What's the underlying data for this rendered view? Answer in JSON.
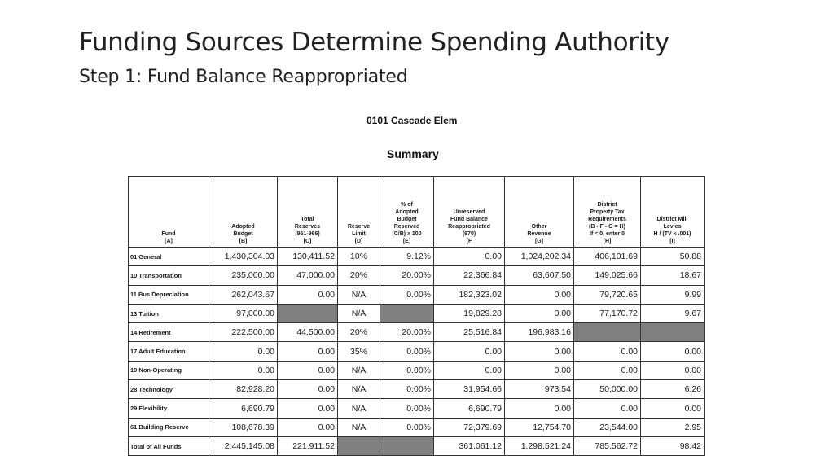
{
  "slide": {
    "title": "Funding Sources Determine Spending Authority",
    "subtitle": "Step 1: Fund Balance Reappropriated"
  },
  "report": {
    "school": "0101 Cascade Elem",
    "section": "Summary"
  },
  "table": {
    "headers": [
      "Fund\n[A]",
      "Adopted\nBudget\n[B]",
      "Total\nReserves\n(961-966)\n[C]",
      "Reserve\nLimit\n[D]",
      "% of\nAdopted\nBudget\nReserved\n(C/B) x 100\n[E]",
      "Unreserved\nFund Balance\nReappropriated\n(970)\n[F",
      "Other\nRevenue\n[G]",
      "District\nProperty Tax\nRequirements\n(B - F - G = H)\nIf < 0, enter 0\n[H]",
      "District Mill\nLevies\nH / (TV x .001)\n[I]"
    ],
    "rows": [
      {
        "fund": "01 General",
        "adopted": "1,430,304.03",
        "reserves": "130,411.52",
        "limit": "10%",
        "pct": "9.12%",
        "unreserved": "0.00",
        "other": "1,024,202.34",
        "tax": "406,101.69",
        "levies": "50.88"
      },
      {
        "fund": "10 Transportation",
        "adopted": "235,000.00",
        "reserves": "47,000.00",
        "limit": "20%",
        "pct": "20.00%",
        "unreserved": "22,366.84",
        "other": "63,607.50",
        "tax": "149,025.66",
        "levies": "18.67"
      },
      {
        "fund": "11 Bus Depreciation",
        "adopted": "262,043.67",
        "reserves": "0.00",
        "limit": "N/A",
        "pct": "0.00%",
        "unreserved": "182,323.02",
        "other": "0.00",
        "tax": "79,720.65",
        "levies": "9.99"
      },
      {
        "fund": "13 Tuition",
        "adopted": "97,000.00",
        "reserves": "",
        "limit": "N/A",
        "pct": "",
        "unreserved": "19,829.28",
        "other": "0.00",
        "tax": "77,170.72",
        "levies": "9.67"
      },
      {
        "fund": "14 Retirement",
        "adopted": "222,500.00",
        "reserves": "44,500.00",
        "limit": "20%",
        "pct": "20.00%",
        "unreserved": "25,516.84",
        "other": "196,983.16",
        "tax": "",
        "levies": ""
      },
      {
        "fund": "17 Adult Education",
        "adopted": "0.00",
        "reserves": "0.00",
        "limit": "35%",
        "pct": "0.00%",
        "unreserved": "0.00",
        "other": "0.00",
        "tax": "0.00",
        "levies": "0.00"
      },
      {
        "fund": "19 Non-Operating",
        "adopted": "0.00",
        "reserves": "0.00",
        "limit": "N/A",
        "pct": "0.00%",
        "unreserved": "0.00",
        "other": "0.00",
        "tax": "0.00",
        "levies": "0.00"
      },
      {
        "fund": "28 Technology",
        "adopted": "82,928.20",
        "reserves": "0.00",
        "limit": "N/A",
        "pct": "0.00%",
        "unreserved": "31,954.66",
        "other": "973.54",
        "tax": "50,000.00",
        "levies": "6.26"
      },
      {
        "fund": "29 Flexibility",
        "adopted": "6,690.79",
        "reserves": "0.00",
        "limit": "N/A",
        "pct": "0.00%",
        "unreserved": "6,690.79",
        "other": "0.00",
        "tax": "0.00",
        "levies": "0.00"
      },
      {
        "fund": "61 Building Reserve",
        "adopted": "108,678.39",
        "reserves": "0.00",
        "limit": "N/A",
        "pct": "0.00%",
        "unreserved": "72,379.69",
        "other": "12,754.70",
        "tax": "23,544.00",
        "levies": "2.95"
      },
      {
        "fund": "Total of All Funds",
        "adopted": "2,445,145.08",
        "reserves": "221,911.52",
        "limit": "",
        "pct": "",
        "unreserved": "361,061.12",
        "other": "1,298,521.24",
        "tax": "785,562.72",
        "levies": "98.42"
      }
    ],
    "shaded_cells": [
      {
        "row": 3,
        "col": "reserves"
      },
      {
        "row": 3,
        "col": "pct"
      },
      {
        "row": 4,
        "col": "tax"
      },
      {
        "row": 4,
        "col": "levies"
      },
      {
        "row": 10,
        "col": "limit"
      },
      {
        "row": 10,
        "col": "pct"
      }
    ],
    "shade_color": "#808080"
  }
}
